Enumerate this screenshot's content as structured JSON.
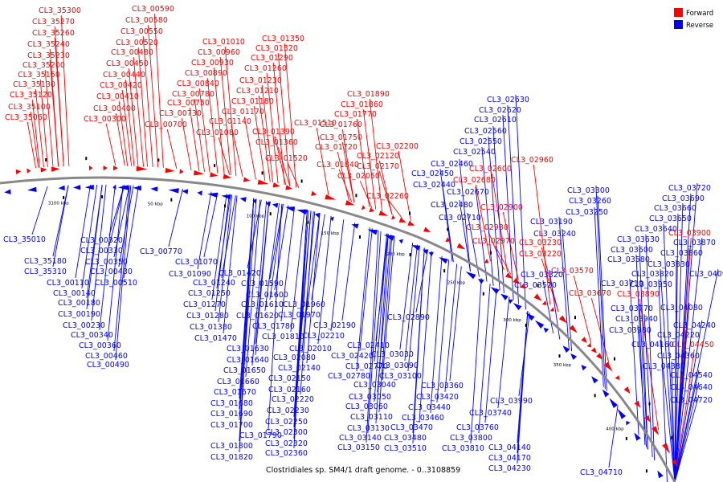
{
  "legend": {
    "forward_label": "Forward",
    "reverse_label": "Reverse",
    "forward_color": "#ff0000",
    "reverse_color": "#0000ff"
  },
  "caption": "Clostridiales sp. SM4/1 draft genome. - 0..3108859",
  "scale_labels": [
    "50 kbp",
    "100 kbp",
    "150 kbp",
    "200 kbp",
    "250 kbp",
    "300 kbp",
    "350 kbp",
    "400 kbp",
    "3100 kbp"
  ],
  "forward_genes": [
    "CL3_35300",
    "CL3_35270",
    "CL3_35260",
    "CL3_35240",
    "CL3_35230",
    "CL3_35200",
    "CL3_35150",
    "CL3_35130",
    "CL3_35120",
    "CL3_35100",
    "CL3_35060",
    "CL3_00590",
    "CL3_00580",
    "CL3_00550",
    "CL3_00520",
    "CL3_00480",
    "CL3_00450",
    "CL3_00440",
    "CL3_00420",
    "CL3_00410",
    "CL3_00400",
    "CL3_00300",
    "CL3_01010",
    "CL3_00960",
    "CL3_00930",
    "CL3_00890",
    "CL3_00840",
    "CL3_00780",
    "CL3_00750",
    "CL3_00730",
    "CL3_00700",
    "CL3_01350",
    "CL3_01320",
    "CL3_01290",
    "CL3_01260",
    "CL3_01230",
    "CL3_01210",
    "CL3_01180",
    "CL3_01170",
    "CL3_01140",
    "CL3_01080",
    "CL3_01510",
    "CL3_01390",
    "CL3_01360",
    "CL3_01520",
    "CL3_01890",
    "CL3_01860",
    "CL3_01770",
    "CL3_01760",
    "CL3_01750",
    "CL3_01720",
    "CL3_01840",
    "CL3_02200",
    "CL3_02120",
    "CL3_02170",
    "CL3_02050",
    "CL3_02260",
    "CL3_02960",
    "CL3_02600",
    "CL3_02680",
    "CL3_02900",
    "CL3_02930",
    "CL3_02970",
    "CL3_03230",
    "CL3_03220",
    "CL3_03570",
    "CL3_03670",
    "CL3_03890",
    "CL3_03900",
    "CL3_04450"
  ],
  "reverse_genes": [
    "CL3_35010",
    "CL3_35310",
    "CL3_35180",
    "CL3_00320",
    "CL3_00330",
    "CL3_00350",
    "CL3_00430",
    "CL3_00510",
    "CL3_00110",
    "CL3_00140",
    "CL3_00180",
    "CL3_00190",
    "CL3_00230",
    "CL3_00340",
    "CL3_00360",
    "CL3_00460",
    "CL3_00490",
    "CL3_00770",
    "CL3_01070",
    "CL3_01090",
    "CL3_01420",
    "CL3_01240",
    "CL3_01250",
    "CL3_01270",
    "CL3_01280",
    "CL3_01380",
    "CL3_01470",
    "CL3_01590",
    "CL3_01600",
    "CL3_01610",
    "CL3_01620",
    "CL3_01780",
    "CL3_01810",
    "CL3_01630",
    "CL3_01640",
    "CL3_01650",
    "CL3_01660",
    "CL3_01670",
    "CL3_01680",
    "CL3_01690",
    "CL3_01700",
    "CL3_01790",
    "CL3_01800",
    "CL3_01820",
    "CL3_01960",
    "CL3_01970",
    "CL3_02190",
    "CL3_02210",
    "CL3_02010",
    "CL3_02080",
    "CL3_02140",
    "CL3_02150",
    "CL3_02160",
    "CL3_02220",
    "CL3_02230",
    "CL3_02250",
    "CL3_02300",
    "CL3_02320",
    "CL3_02360",
    "CL3_02410",
    "CL3_02420",
    "CL3_02770",
    "CL3_02780",
    "CL3_02630",
    "CL3_02620",
    "CL3_02610",
    "CL3_02560",
    "CL3_02550",
    "CL3_02540",
    "CL3_02460",
    "CL3_02450",
    "CL3_02440",
    "CL3_02670",
    "CL3_02480",
    "CL3_02710",
    "CL3_02890",
    "CL3_03030",
    "CL3_03090",
    "CL3_03100",
    "CL3_03040",
    "CL3_03050",
    "CL3_03060",
    "CL3_03110",
    "CL3_03130",
    "CL3_03140",
    "CL3_03150",
    "CL3_03360",
    "CL3_03420",
    "CL3_03440",
    "CL3_03460",
    "CL3_03470",
    "CL3_03480",
    "CL3_03510",
    "CL3_03740",
    "CL3_03760",
    "CL3_03800",
    "CL3_03810",
    "CL3_03300",
    "CL3_03260",
    "CL3_03250",
    "CL3_03190",
    "CL3_03240",
    "CL3_03320",
    "CL3_03520",
    "CL3_03990",
    "CL3_04140",
    "CL3_04170",
    "CL3_04230",
    "CL3_03720",
    "CL3_03690",
    "CL3_03660",
    "CL3_03650",
    "CL3_03640",
    "CL3_03630",
    "CL3_03600",
    "CL3_03580",
    "CL3_03870",
    "CL3_03860",
    "CL3_03830",
    "CL3_03820",
    "CL3_03710",
    "CL3_03950",
    "CL3_03770",
    "CL3_03940",
    "CL3_03980",
    "CL3_04090",
    "CL3_04080",
    "CL3_04240",
    "CL3_04220",
    "CL3_04160",
    "CL3_04360",
    "CL3_04380",
    "CL3_04540",
    "CL3_04640",
    "CL3_04720",
    "CL3_04710"
  ]
}
